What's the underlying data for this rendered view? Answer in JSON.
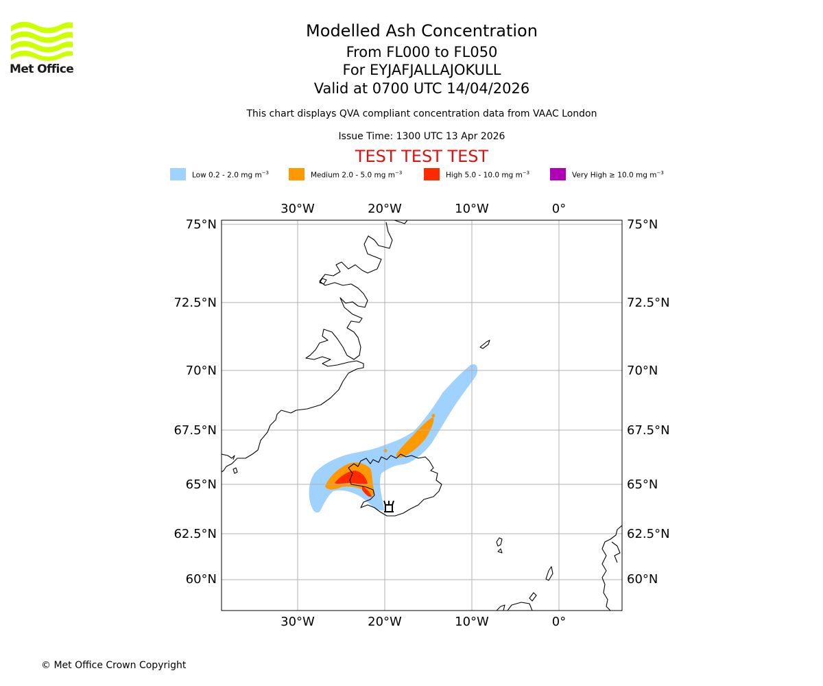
{
  "logo": {
    "text": "Met Office",
    "icon": "met-office-wave-logo-icon",
    "color": "#ccff00"
  },
  "titles": {
    "main": "Modelled Ash Concentration",
    "levels": "From FL000 to FL050",
    "volcano": "For EYJAFJALLAJOKULL",
    "valid": "Valid at 0700 UTC 14/04/2026"
  },
  "subtitle": {
    "compliance": "This chart displays QVA compliant concentration data from VAAC London",
    "issue_time": "Issue Time: 1300 UTC 13 Apr 2026"
  },
  "test_banner": "TEST TEST TEST",
  "legend": [
    {
      "label": "Low 0.2 - 2.0 mg m",
      "exp": "−3",
      "color": "#a0d2ff"
    },
    {
      "label": "Medium 2.0 - 5.0 mg m",
      "exp": "−3",
      "color": "#ff9900"
    },
    {
      "label": "High 5.0 - 10.0 mg m",
      "exp": "−3",
      "color": "#ff2a00"
    },
    {
      "label": "Very High  ≥  10.0 mg m",
      "exp": "−3",
      "color": "#b000b5"
    }
  ],
  "map": {
    "lon_labels": [
      "30°W",
      "20°W",
      "10°W",
      "0°"
    ],
    "lat_labels": [
      "75°N",
      "72.5°N",
      "70°N",
      "67.5°N",
      "65°N",
      "62.5°N",
      "60°N"
    ],
    "colors": {
      "low": "#a0d2ff",
      "medium": "#ff9900",
      "high": "#ff2a00",
      "grid": "#b0b0b0",
      "coast": "#000000"
    },
    "volcano_marker_icon": "volcano-icon"
  },
  "copyright": "© Met Office Crown Copyright"
}
